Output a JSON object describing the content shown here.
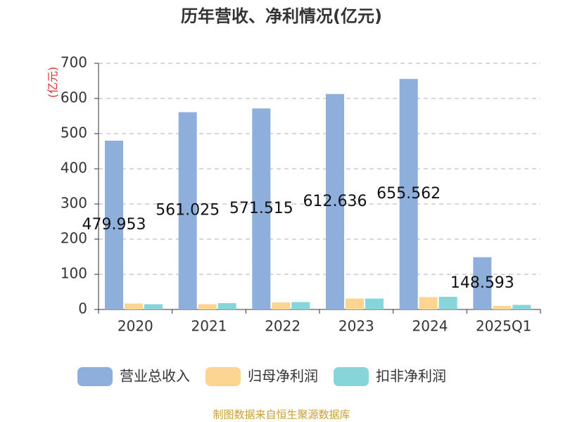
{
  "chart_data": {
    "type": "bar",
    "title": "历年营收、净利情况(亿元)",
    "y_label": "(亿元)",
    "source": "制图数据来自恒生聚源数据库",
    "categories": [
      "2020",
      "2021",
      "2022",
      "2023",
      "2024",
      "2025Q1"
    ],
    "series": [
      {
        "name": "营业总收入",
        "color": "#8eaedc",
        "values": [
          479.953,
          561.025,
          571.515,
          612.636,
          655.562,
          148.593
        ]
      },
      {
        "name": "归母净利润",
        "color": "#fdd593",
        "values": [
          17,
          15,
          20,
          31,
          35,
          10
        ]
      },
      {
        "name": "扣非净利润",
        "color": "#87d5d8",
        "values": [
          15,
          18,
          21,
          31,
          36,
          13
        ]
      }
    ],
    "ylim": [
      0,
      700
    ],
    "yticks": [
      0,
      100,
      200,
      300,
      400,
      500,
      600,
      700
    ],
    "grid": true
  }
}
